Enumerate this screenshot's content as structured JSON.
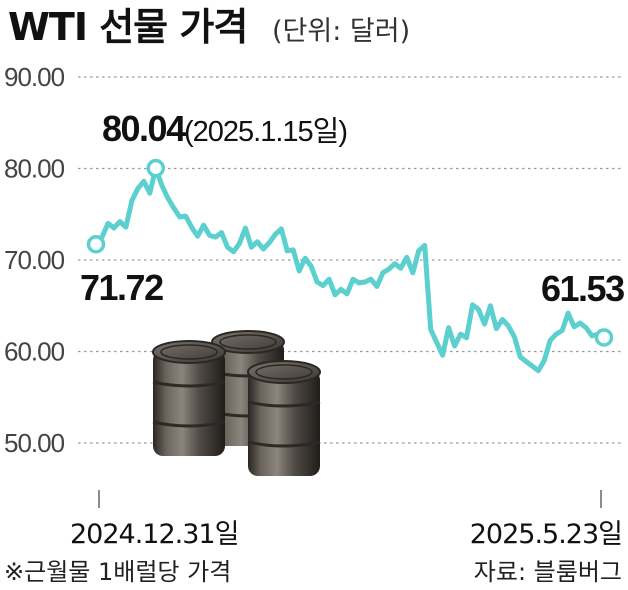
{
  "header": {
    "title": "WTI 선물 가격",
    "unit": "(단위: 달러)"
  },
  "footer": {
    "note": "※근월물 1배럴당 가격",
    "source": "자료: 블룸버그"
  },
  "colors": {
    "line": "#5ccfcf",
    "marker_fill": "#ffffff",
    "grid": "#9a9a9a",
    "text": "#111111",
    "barrel": "#4a4540"
  },
  "icons": [
    "oil-barrel-icon",
    "oil-barrel-icon",
    "oil-barrel-icon"
  ],
  "chart_data": {
    "type": "line",
    "title": "WTI 선물 가격",
    "unit": "(단위: 달러)",
    "y_ticks": [
      "90.00",
      "80.00",
      "70.00",
      "60.00",
      "50.00"
    ],
    "ylim": [
      50,
      90
    ],
    "x_labels": [
      "2024.12.31일",
      "2025.5.23일"
    ],
    "grid": "horizontal dotted",
    "series": [
      {
        "values": [
          71.72,
          72.5,
          74.0,
          73.5,
          74.2,
          73.6,
          76.5,
          77.8,
          78.6,
          77.3,
          80.04,
          78.2,
          76.8,
          75.7,
          74.7,
          74.8,
          73.6,
          72.6,
          73.8,
          72.7,
          72.5,
          73.0,
          71.4,
          70.9,
          71.8,
          73.5,
          71.4,
          72.0,
          71.2,
          71.9,
          72.8,
          73.4,
          71.0,
          71.1,
          68.8,
          70.2,
          69.3,
          67.6,
          67.2,
          67.9,
          66.2,
          66.8,
          66.3,
          67.9,
          67.5,
          67.6,
          67.9,
          67.1,
          68.6,
          69.0,
          69.6,
          69.1,
          70.3,
          68.6,
          71.0,
          71.6,
          62.4,
          61.0,
          59.6,
          62.6,
          60.6,
          61.9,
          61.5,
          65.1,
          64.6,
          63.0,
          65.0,
          62.5,
          63.5,
          62.8,
          61.6,
          59.4,
          58.9,
          58.4,
          57.9,
          59.0,
          61.2,
          61.9,
          62.3,
          64.2,
          62.7,
          63.1,
          62.6,
          61.7,
          61.9,
          61.53
        ],
        "markers": [
          {
            "label": "71.72",
            "value": 71.72,
            "date": "2024.12.31"
          },
          {
            "label": "80.04",
            "value": 80.04,
            "date": "2025.1.15"
          },
          {
            "label": "61.53",
            "value": 61.53,
            "date": "2025.5.23"
          }
        ]
      }
    ],
    "annotations": [
      {
        "value_text": "80.04",
        "sub_text": "(2025.1.15일)"
      },
      {
        "value_text": "71.72"
      },
      {
        "value_text": "61.53"
      }
    ]
  }
}
